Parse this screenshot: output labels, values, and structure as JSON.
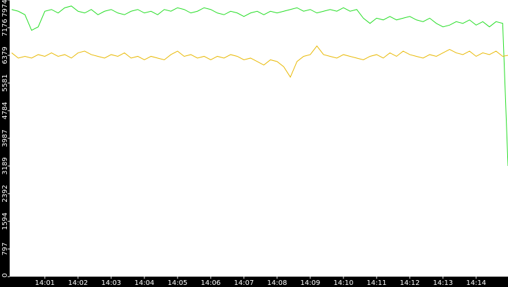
{
  "chart_data": {
    "type": "line",
    "x": [
      840.0,
      840.2,
      840.4,
      840.6,
      840.8,
      841.0,
      841.2,
      841.4,
      841.6,
      841.8,
      842.0,
      842.2,
      842.4,
      842.6,
      842.8,
      843.0,
      843.2,
      843.4,
      843.6,
      843.8,
      844.0,
      844.2,
      844.4,
      844.6,
      844.8,
      845.0,
      845.2,
      845.4,
      845.6,
      845.8,
      846.0,
      846.2,
      846.4,
      846.6,
      846.8,
      847.0,
      847.2,
      847.4,
      847.6,
      847.8,
      848.0,
      848.2,
      848.4,
      848.6,
      848.8,
      849.0,
      849.2,
      849.4,
      849.6,
      849.8,
      850.0,
      850.2,
      850.4,
      850.6,
      850.8,
      851.0,
      851.2,
      851.4,
      851.6,
      851.8,
      852.0,
      852.2,
      852.4,
      852.6,
      852.8,
      853.0,
      853.2,
      853.4,
      853.6,
      853.8,
      854.0,
      854.2,
      854.4,
      854.6,
      854.8,
      854.96
    ],
    "series": [
      {
        "color": "#22dd22",
        "values": [
          7700,
          7650,
          7550,
          7100,
          7200,
          7650,
          7700,
          7600,
          7750,
          7800,
          7650,
          7600,
          7700,
          7550,
          7650,
          7700,
          7600,
          7550,
          7650,
          7700,
          7600,
          7650,
          7550,
          7700,
          7650,
          7750,
          7700,
          7600,
          7650,
          7750,
          7700,
          7600,
          7550,
          7650,
          7600,
          7500,
          7600,
          7650,
          7550,
          7650,
          7600,
          7650,
          7700,
          7750,
          7650,
          7700,
          7600,
          7650,
          7700,
          7650,
          7750,
          7650,
          7700,
          7450,
          7300,
          7450,
          7400,
          7500,
          7400,
          7450,
          7500,
          7400,
          7350,
          7450,
          7300,
          7200,
          7250,
          7350,
          7300,
          7400,
          7250,
          7350,
          7200,
          7350,
          7300,
          3189
        ]
      },
      {
        "color": "#e8b800",
        "values": [
          6450,
          6300,
          6350,
          6300,
          6400,
          6350,
          6450,
          6350,
          6400,
          6300,
          6450,
          6500,
          6400,
          6350,
          6300,
          6400,
          6350,
          6450,
          6300,
          6350,
          6250,
          6350,
          6300,
          6250,
          6400,
          6500,
          6350,
          6400,
          6300,
          6350,
          6250,
          6350,
          6300,
          6400,
          6350,
          6250,
          6300,
          6200,
          6100,
          6250,
          6200,
          6050,
          5750,
          6200,
          6350,
          6400,
          6650,
          6400,
          6350,
          6300,
          6400,
          6350,
          6300,
          6250,
          6350,
          6400,
          6300,
          6450,
          6350,
          6500,
          6400,
          6350,
          6300,
          6400,
          6350,
          6450,
          6550,
          6450,
          6400,
          6500,
          6350,
          6450,
          6400,
          6500,
          6350,
          6379
        ]
      }
    ],
    "xlim": [
      839.94,
      854.96
    ],
    "xticks": [
      {
        "value": 841,
        "label": "14:01"
      },
      {
        "value": 842,
        "label": "14:02"
      },
      {
        "value": 843,
        "label": "14:03"
      },
      {
        "value": 844,
        "label": "14:04"
      },
      {
        "value": 845,
        "label": "14:05"
      },
      {
        "value": 846,
        "label": "14:06"
      },
      {
        "value": 847,
        "label": "14:07"
      },
      {
        "value": 848,
        "label": "14:08"
      },
      {
        "value": 849,
        "label": "14:09"
      },
      {
        "value": 850,
        "label": "14:10"
      },
      {
        "value": 851,
        "label": "14:11"
      },
      {
        "value": 852,
        "label": "14:12"
      },
      {
        "value": 853,
        "label": "14:13"
      },
      {
        "value": 854,
        "label": "14:14"
      }
    ],
    "ylim": [
      0,
      7974
    ],
    "yticks": [
      0,
      797,
      1594,
      2392,
      3189,
      3987,
      4784,
      5581,
      6379,
      7176,
      7974
    ]
  }
}
